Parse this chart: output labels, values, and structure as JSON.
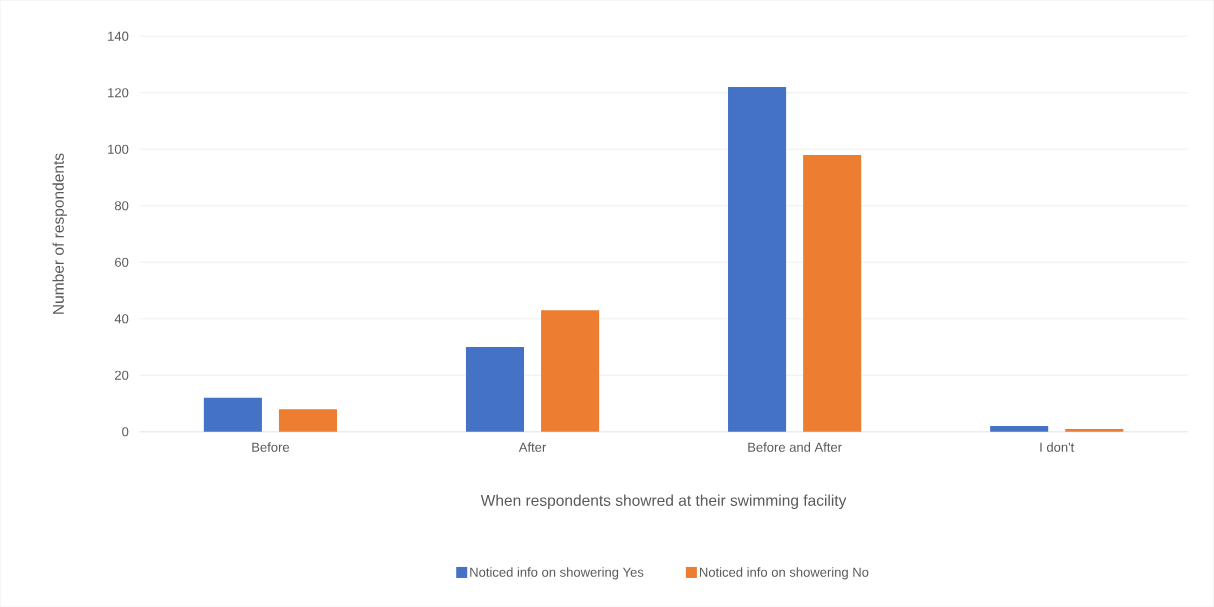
{
  "chart_data": {
    "type": "bar",
    "xlabel": "When respondents showred at their swimming facility",
    "ylabel": "Number of respondents",
    "categories": [
      "Before",
      "After",
      "Before and After",
      "I don't"
    ],
    "series": [
      {
        "name": "Noticed info on showering Yes",
        "color": "#4472c4",
        "values": [
          12,
          30,
          122,
          2
        ]
      },
      {
        "name": "Noticed info on showering No",
        "color": "#ed7d31",
        "values": [
          8,
          43,
          98,
          1
        ]
      }
    ],
    "ylim": [
      0,
      140
    ],
    "yticks": [
      0,
      20,
      40,
      60,
      80,
      100,
      120,
      140
    ],
    "grid": "y",
    "legend": "bottom"
  }
}
